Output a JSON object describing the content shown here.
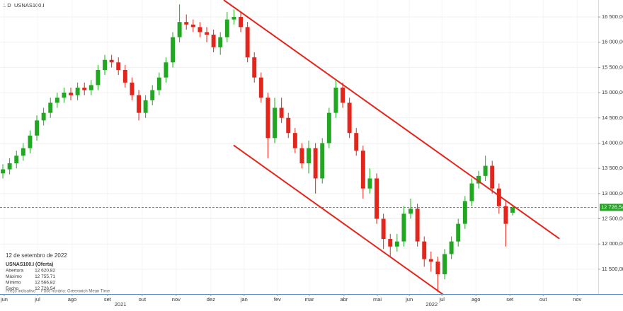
{
  "chart_data": {
    "type": "candlestick",
    "interval": "1 D",
    "symbol": "USNAS100.I",
    "up_color": "#22a722",
    "down_color": "#e3261c",
    "grid": true,
    "x": [
      0,
      1,
      2,
      3,
      4,
      5,
      6,
      7,
      8,
      9,
      10,
      11,
      12,
      13,
      14,
      15,
      16,
      17,
      18,
      19,
      20,
      21,
      22,
      23,
      24,
      25,
      26,
      27,
      28,
      29,
      30,
      31,
      32,
      33,
      34,
      35,
      36,
      37,
      38,
      39,
      40,
      41,
      42,
      43,
      44,
      45,
      46,
      47,
      48,
      49,
      50,
      51,
      52,
      53,
      54,
      55,
      56,
      57,
      58,
      59,
      60,
      61,
      62,
      63,
      64,
      65,
      66,
      67,
      68,
      69,
      70,
      71,
      72,
      73,
      74,
      75
    ],
    "open": [
      13400,
      13480,
      13600,
      13750,
      13900,
      14150,
      14450,
      14600,
      14800,
      14900,
      15000,
      14950,
      15100,
      15050,
      15150,
      15450,
      15650,
      15600,
      15450,
      15200,
      14950,
      14600,
      14850,
      15050,
      15300,
      15600,
      16100,
      16400,
      16350,
      16300,
      16200,
      16150,
      15900,
      16100,
      16450,
      16500,
      16300,
      15700,
      15300,
      14900,
      14100,
      14700,
      14500,
      14200,
      13900,
      13600,
      13900,
      13300,
      14000,
      14600,
      15100,
      14800,
      14200,
      13850,
      13100,
      13300,
      12500,
      12100,
      11950,
      12050,
      12600,
      12700,
      12050,
      11700,
      11650,
      11400,
      11800,
      12050,
      12400,
      12850,
      13200,
      13350,
      13550,
      13100,
      12750,
      12620.82
    ],
    "high": [
      13580,
      13700,
      13850,
      14000,
      14250,
      14550,
      14700,
      14900,
      15000,
      15100,
      15100,
      15200,
      15200,
      15250,
      15550,
      15750,
      15750,
      15700,
      15550,
      15300,
      15050,
      14950,
      15150,
      15400,
      15700,
      16200,
      16750,
      16550,
      16450,
      16400,
      16300,
      16250,
      16200,
      16600,
      16650,
      16600,
      16400,
      15800,
      15400,
      15000,
      14900,
      14900,
      14600,
      14300,
      14000,
      14050,
      14000,
      14100,
      14700,
      15250,
      15200,
      14900,
      14300,
      13950,
      13500,
      13400,
      12600,
      12200,
      12200,
      12750,
      12900,
      12800,
      12150,
      11850,
      11750,
      11900,
      12150,
      12500,
      12950,
      13300,
      13450,
      13750,
      13650,
      13200,
      12850,
      12755.71
    ],
    "low": [
      13300,
      13380,
      13500,
      13650,
      13800,
      14050,
      14350,
      14500,
      14700,
      14800,
      14850,
      14850,
      14950,
      14950,
      15050,
      15350,
      15500,
      15350,
      15100,
      14850,
      14450,
      14500,
      14750,
      14950,
      15200,
      15500,
      16000,
      16250,
      16200,
      16100,
      16000,
      15800,
      15750,
      16000,
      16350,
      16200,
      15600,
      15200,
      14800,
      13700,
      14000,
      14400,
      14100,
      13800,
      13500,
      13400,
      13000,
      13200,
      13900,
      14500,
      14700,
      14100,
      13750,
      12900,
      13000,
      12400,
      11900,
      11750,
      11850,
      11950,
      12500,
      11950,
      11550,
      11450,
      11050,
      11300,
      11700,
      11950,
      12300,
      12750,
      13100,
      13250,
      13000,
      12600,
      11950,
      12566.82
    ],
    "close": [
      13480,
      13600,
      13750,
      13900,
      14150,
      14450,
      14600,
      14800,
      14900,
      15000,
      14950,
      15100,
      15050,
      15150,
      15450,
      15650,
      15600,
      15450,
      15200,
      14950,
      14600,
      14850,
      15050,
      15300,
      15600,
      16100,
      16400,
      16350,
      16300,
      16200,
      16150,
      15900,
      16100,
      16450,
      16500,
      16300,
      15700,
      15300,
      14900,
      14100,
      14700,
      14500,
      14200,
      13900,
      13600,
      13900,
      13300,
      14000,
      14600,
      15100,
      14800,
      14200,
      13850,
      13100,
      13300,
      12500,
      12100,
      11950,
      12050,
      12600,
      12700,
      12050,
      11700,
      11650,
      11400,
      11800,
      12050,
      12400,
      12850,
      13200,
      13350,
      13550,
      13100,
      12750,
      12400,
      12726.54
    ],
    "xlim": [
      -0.42,
      87.6
    ],
    "xticks": [
      {
        "value": 0.2,
        "label": "jun"
      },
      {
        "value": 5.1,
        "label": "jul"
      },
      {
        "value": 10.2,
        "label": "ago"
      },
      {
        "value": 15.4,
        "label": "set"
      },
      {
        "value": 20.5,
        "label": "out"
      },
      {
        "value": 25.5,
        "label": "nov"
      },
      {
        "value": 30.6,
        "label": "dez"
      },
      {
        "value": 35.5,
        "label": "jan"
      },
      {
        "value": 40.4,
        "label": "fev"
      },
      {
        "value": 45.1,
        "label": "mar"
      },
      {
        "value": 50.2,
        "label": "abr"
      },
      {
        "value": 55.1,
        "label": "mai"
      },
      {
        "value": 59.8,
        "label": "jun"
      },
      {
        "value": 64.6,
        "label": "jul"
      },
      {
        "value": 69.6,
        "label": "ago"
      },
      {
        "value": 74.6,
        "label": "set"
      },
      {
        "value": 79.5,
        "label": "out"
      },
      {
        "value": 84.5,
        "label": "nov"
      }
    ],
    "year_ticks": [
      {
        "value": 17.3,
        "label": "2021"
      },
      {
        "value": 63.1,
        "label": "2022"
      }
    ],
    "ylim": [
      11008,
      16837
    ],
    "yticks": [
      {
        "value": 11500,
        "label": "11 500,00"
      },
      {
        "value": 12000,
        "label": "12 000,00"
      },
      {
        "value": 12500,
        "label": "12 500,00"
      },
      {
        "value": 13000,
        "label": "13 000,00"
      },
      {
        "value": 13500,
        "label": "13 500,00"
      },
      {
        "value": 14000,
        "label": "14 000,00"
      },
      {
        "value": 14500,
        "label": "14 500,00"
      },
      {
        "value": 15000,
        "label": "15 000,00"
      },
      {
        "value": 15500,
        "label": "15 500,00"
      },
      {
        "value": 16000,
        "label": "16 000,00"
      },
      {
        "value": 16500,
        "label": "16 500,00"
      }
    ],
    "last_price": 12726.54,
    "last_price_label": "12 726,54",
    "trendlines": [
      {
        "color": "#e3261c",
        "x": [
          32.5,
          81.9
        ],
        "y": [
          16837,
          12104
        ]
      },
      {
        "color": "#e3261c",
        "x": [
          33.95,
          65.4
        ],
        "y": [
          13958,
          10938
        ]
      }
    ],
    "info_panel": {
      "date": "12 de setembro de 2022",
      "title": "USNAS100.I (Oferta)",
      "rows": [
        {
          "label": "Abertura",
          "value": "12 620,82"
        },
        {
          "label": "Máximo",
          "value": "12 755,71"
        },
        {
          "label": "Mínimo",
          "value": "12 566,82"
        },
        {
          "label": "Fecho",
          "value": "12 726,54"
        }
      ]
    },
    "footer": [
      "Preço indicativo",
      "Fuso horário: Greenwich Mean Time"
    ]
  }
}
